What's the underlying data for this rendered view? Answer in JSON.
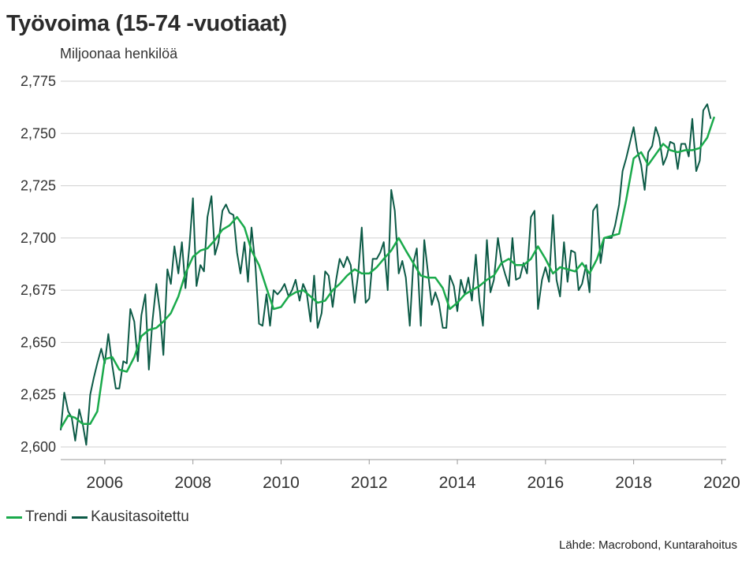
{
  "title": "Työvoima (15-74 -vuotiaat)",
  "unit_label": "Miljoonaa henkilöä",
  "source": "Lähde: Macrobond, Kuntarahoitus",
  "chart_data": {
    "type": "line",
    "title": "Työvoima (15-74 -vuotiaat)",
    "ylabel": "Miljoonaa henkilöä",
    "xlim": [
      2005.0,
      2020.1
    ],
    "ylim": [
      2.6,
      2.775
    ],
    "yticks": [
      2.6,
      2.625,
      2.65,
      2.675,
      2.7,
      2.725,
      2.75,
      2.775
    ],
    "ytick_labels": [
      "2,600",
      "2,625",
      "2,650",
      "2,675",
      "2,700",
      "2,725",
      "2,750",
      "2,775"
    ],
    "xticks": [
      2006,
      2008,
      2010,
      2012,
      2014,
      2016,
      2018,
      2020
    ],
    "xtick_labels": [
      "2006",
      "2008",
      "2010",
      "2012",
      "2014",
      "2016",
      "2018",
      "2020"
    ],
    "grid": "horizontal",
    "legend_position": "bottom-left",
    "series": [
      {
        "name": "Trendi",
        "color": "#1aaa4b",
        "points": [
          [
            2005.0,
            2.609
          ],
          [
            2005.17,
            2.615
          ],
          [
            2005.33,
            2.614
          ],
          [
            2005.5,
            2.611
          ],
          [
            2005.67,
            2.611
          ],
          [
            2005.83,
            2.617
          ],
          [
            2006.0,
            2.642
          ],
          [
            2006.17,
            2.643
          ],
          [
            2006.33,
            2.637
          ],
          [
            2006.5,
            2.636
          ],
          [
            2006.67,
            2.643
          ],
          [
            2006.83,
            2.653
          ],
          [
            2007.0,
            2.656
          ],
          [
            2007.17,
            2.657
          ],
          [
            2007.33,
            2.66
          ],
          [
            2007.5,
            2.664
          ],
          [
            2007.67,
            2.672
          ],
          [
            2007.83,
            2.683
          ],
          [
            2008.0,
            2.691
          ],
          [
            2008.17,
            2.694
          ],
          [
            2008.33,
            2.695
          ],
          [
            2008.5,
            2.699
          ],
          [
            2008.67,
            2.704
          ],
          [
            2008.83,
            2.706
          ],
          [
            2009.0,
            2.71
          ],
          [
            2009.17,
            2.705
          ],
          [
            2009.33,
            2.694
          ],
          [
            2009.5,
            2.687
          ],
          [
            2009.67,
            2.676
          ],
          [
            2009.83,
            2.666
          ],
          [
            2010.0,
            2.667
          ],
          [
            2010.17,
            2.672
          ],
          [
            2010.33,
            2.674
          ],
          [
            2010.5,
            2.675
          ],
          [
            2010.67,
            2.672
          ],
          [
            2010.83,
            2.669
          ],
          [
            2011.0,
            2.67
          ],
          [
            2011.17,
            2.675
          ],
          [
            2011.33,
            2.678
          ],
          [
            2011.5,
            2.682
          ],
          [
            2011.67,
            2.685
          ],
          [
            2011.83,
            2.683
          ],
          [
            2012.0,
            2.683
          ],
          [
            2012.17,
            2.686
          ],
          [
            2012.33,
            2.69
          ],
          [
            2012.5,
            2.694
          ],
          [
            2012.67,
            2.7
          ],
          [
            2012.83,
            2.694
          ],
          [
            2013.0,
            2.688
          ],
          [
            2013.17,
            2.682
          ],
          [
            2013.33,
            2.681
          ],
          [
            2013.5,
            2.681
          ],
          [
            2013.67,
            2.676
          ],
          [
            2013.83,
            2.666
          ],
          [
            2014.0,
            2.669
          ],
          [
            2014.17,
            2.673
          ],
          [
            2014.33,
            2.675
          ],
          [
            2014.5,
            2.677
          ],
          [
            2014.67,
            2.68
          ],
          [
            2014.83,
            2.682
          ],
          [
            2015.0,
            2.688
          ],
          [
            2015.17,
            2.69
          ],
          [
            2015.33,
            2.687
          ],
          [
            2015.5,
            2.687
          ],
          [
            2015.67,
            2.69
          ],
          [
            2015.83,
            2.696
          ],
          [
            2016.0,
            2.69
          ],
          [
            2016.17,
            2.683
          ],
          [
            2016.33,
            2.686
          ],
          [
            2016.5,
            2.685
          ],
          [
            2016.67,
            2.684
          ],
          [
            2016.83,
            2.688
          ],
          [
            2017.0,
            2.683
          ],
          [
            2017.17,
            2.69
          ],
          [
            2017.33,
            2.7
          ],
          [
            2017.5,
            2.701
          ],
          [
            2017.67,
            2.702
          ],
          [
            2017.83,
            2.718
          ],
          [
            2018.0,
            2.738
          ],
          [
            2018.17,
            2.741
          ],
          [
            2018.33,
            2.735
          ],
          [
            2018.5,
            2.74
          ],
          [
            2018.67,
            2.745
          ],
          [
            2018.83,
            2.742
          ],
          [
            2019.0,
            2.741
          ],
          [
            2019.17,
            2.742
          ],
          [
            2019.33,
            2.742
          ],
          [
            2019.5,
            2.743
          ],
          [
            2019.67,
            2.748
          ],
          [
            2019.83,
            2.758
          ]
        ]
      },
      {
        "name": "Kausitasoitettu",
        "color": "#0c5a46",
        "points": [
          [
            2005.0,
            2.608
          ],
          [
            2005.08,
            2.626
          ],
          [
            2005.17,
            2.617
          ],
          [
            2005.25,
            2.614
          ],
          [
            2005.33,
            2.603
          ],
          [
            2005.42,
            2.618
          ],
          [
            2005.5,
            2.611
          ],
          [
            2005.58,
            2.601
          ],
          [
            2005.67,
            2.625
          ],
          [
            2005.75,
            2.633
          ],
          [
            2005.83,
            2.64
          ],
          [
            2005.92,
            2.647
          ],
          [
            2006.0,
            2.64
          ],
          [
            2006.08,
            2.654
          ],
          [
            2006.17,
            2.639
          ],
          [
            2006.25,
            2.628
          ],
          [
            2006.33,
            2.628
          ],
          [
            2006.42,
            2.641
          ],
          [
            2006.5,
            2.64
          ],
          [
            2006.58,
            2.666
          ],
          [
            2006.67,
            2.66
          ],
          [
            2006.75,
            2.641
          ],
          [
            2006.83,
            2.663
          ],
          [
            2006.92,
            2.673
          ],
          [
            2007.0,
            2.637
          ],
          [
            2007.08,
            2.66
          ],
          [
            2007.17,
            2.678
          ],
          [
            2007.25,
            2.665
          ],
          [
            2007.33,
            2.644
          ],
          [
            2007.42,
            2.685
          ],
          [
            2007.5,
            2.678
          ],
          [
            2007.58,
            2.696
          ],
          [
            2007.67,
            2.683
          ],
          [
            2007.75,
            2.698
          ],
          [
            2007.83,
            2.676
          ],
          [
            2007.92,
            2.696
          ],
          [
            2008.0,
            2.719
          ],
          [
            2008.08,
            2.677
          ],
          [
            2008.17,
            2.687
          ],
          [
            2008.25,
            2.684
          ],
          [
            2008.33,
            2.71
          ],
          [
            2008.42,
            2.72
          ],
          [
            2008.5,
            2.692
          ],
          [
            2008.58,
            2.698
          ],
          [
            2008.67,
            2.713
          ],
          [
            2008.75,
            2.716
          ],
          [
            2008.83,
            2.712
          ],
          [
            2008.92,
            2.711
          ],
          [
            2009.0,
            2.693
          ],
          [
            2009.08,
            2.683
          ],
          [
            2009.17,
            2.698
          ],
          [
            2009.25,
            2.679
          ],
          [
            2009.33,
            2.705
          ],
          [
            2009.42,
            2.686
          ],
          [
            2009.5,
            2.659
          ],
          [
            2009.58,
            2.658
          ],
          [
            2009.67,
            2.673
          ],
          [
            2009.75,
            2.658
          ],
          [
            2009.83,
            2.675
          ],
          [
            2009.92,
            2.673
          ],
          [
            2010.0,
            2.675
          ],
          [
            2010.08,
            2.678
          ],
          [
            2010.17,
            2.672
          ],
          [
            2010.25,
            2.675
          ],
          [
            2010.33,
            2.68
          ],
          [
            2010.42,
            2.67
          ],
          [
            2010.5,
            2.678
          ],
          [
            2010.58,
            2.674
          ],
          [
            2010.67,
            2.66
          ],
          [
            2010.75,
            2.682
          ],
          [
            2010.83,
            2.657
          ],
          [
            2010.92,
            2.664
          ],
          [
            2011.0,
            2.684
          ],
          [
            2011.08,
            2.682
          ],
          [
            2011.17,
            2.667
          ],
          [
            2011.25,
            2.68
          ],
          [
            2011.33,
            2.69
          ],
          [
            2011.42,
            2.686
          ],
          [
            2011.5,
            2.691
          ],
          [
            2011.58,
            2.687
          ],
          [
            2011.67,
            2.669
          ],
          [
            2011.75,
            2.683
          ],
          [
            2011.83,
            2.705
          ],
          [
            2011.92,
            2.669
          ],
          [
            2012.0,
            2.671
          ],
          [
            2012.08,
            2.69
          ],
          [
            2012.17,
            2.69
          ],
          [
            2012.25,
            2.693
          ],
          [
            2012.33,
            2.698
          ],
          [
            2012.42,
            2.675
          ],
          [
            2012.5,
            2.723
          ],
          [
            2012.58,
            2.713
          ],
          [
            2012.67,
            2.683
          ],
          [
            2012.75,
            2.689
          ],
          [
            2012.83,
            2.681
          ],
          [
            2012.92,
            2.658
          ],
          [
            2013.0,
            2.688
          ],
          [
            2013.08,
            2.695
          ],
          [
            2013.17,
            2.658
          ],
          [
            2013.25,
            2.699
          ],
          [
            2013.33,
            2.684
          ],
          [
            2013.42,
            2.668
          ],
          [
            2013.5,
            2.674
          ],
          [
            2013.58,
            2.669
          ],
          [
            2013.67,
            2.657
          ],
          [
            2013.75,
            2.657
          ],
          [
            2013.83,
            2.682
          ],
          [
            2013.92,
            2.677
          ],
          [
            2014.0,
            2.665
          ],
          [
            2014.08,
            2.68
          ],
          [
            2014.17,
            2.673
          ],
          [
            2014.25,
            2.681
          ],
          [
            2014.33,
            2.67
          ],
          [
            2014.42,
            2.692
          ],
          [
            2014.5,
            2.67
          ],
          [
            2014.58,
            2.658
          ],
          [
            2014.67,
            2.699
          ],
          [
            2014.75,
            2.674
          ],
          [
            2014.83,
            2.68
          ],
          [
            2014.92,
            2.7
          ],
          [
            2015.0,
            2.689
          ],
          [
            2015.08,
            2.683
          ],
          [
            2015.17,
            2.677
          ],
          [
            2015.25,
            2.7
          ],
          [
            2015.33,
            2.68
          ],
          [
            2015.42,
            2.681
          ],
          [
            2015.5,
            2.688
          ],
          [
            2015.58,
            2.683
          ],
          [
            2015.67,
            2.71
          ],
          [
            2015.75,
            2.713
          ],
          [
            2015.83,
            2.666
          ],
          [
            2015.92,
            2.68
          ],
          [
            2016.0,
            2.686
          ],
          [
            2016.08,
            2.679
          ],
          [
            2016.17,
            2.711
          ],
          [
            2016.25,
            2.68
          ],
          [
            2016.33,
            2.672
          ],
          [
            2016.42,
            2.698
          ],
          [
            2016.5,
            2.679
          ],
          [
            2016.58,
            2.694
          ],
          [
            2016.67,
            2.693
          ],
          [
            2016.75,
            2.675
          ],
          [
            2016.83,
            2.678
          ],
          [
            2016.92,
            2.687
          ],
          [
            2017.0,
            2.674
          ],
          [
            2017.08,
            2.713
          ],
          [
            2017.17,
            2.716
          ],
          [
            2017.25,
            2.688
          ],
          [
            2017.33,
            2.7
          ],
          [
            2017.42,
            2.7
          ],
          [
            2017.5,
            2.7
          ],
          [
            2017.58,
            2.706
          ],
          [
            2017.67,
            2.716
          ],
          [
            2017.75,
            2.732
          ],
          [
            2017.83,
            2.738
          ],
          [
            2017.92,
            2.746
          ],
          [
            2018.0,
            2.753
          ],
          [
            2018.08,
            2.742
          ],
          [
            2018.17,
            2.735
          ],
          [
            2018.25,
            2.723
          ],
          [
            2018.33,
            2.741
          ],
          [
            2018.42,
            2.744
          ],
          [
            2018.5,
            2.753
          ],
          [
            2018.58,
            2.748
          ],
          [
            2018.67,
            2.735
          ],
          [
            2018.75,
            2.739
          ],
          [
            2018.83,
            2.746
          ],
          [
            2018.92,
            2.745
          ],
          [
            2019.0,
            2.733
          ],
          [
            2019.08,
            2.745
          ],
          [
            2019.17,
            2.745
          ],
          [
            2019.25,
            2.739
          ],
          [
            2019.33,
            2.757
          ],
          [
            2019.42,
            2.732
          ],
          [
            2019.5,
            2.737
          ],
          [
            2019.58,
            2.761
          ],
          [
            2019.67,
            2.764
          ],
          [
            2019.75,
            2.757
          ]
        ]
      }
    ]
  }
}
